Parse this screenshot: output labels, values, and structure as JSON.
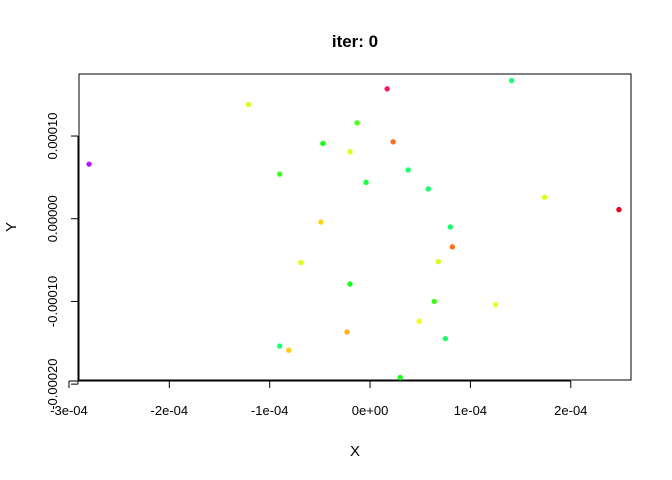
{
  "chart_data": {
    "type": "scatter",
    "title": "iter: 0",
    "xlabel": "X",
    "ylabel": "Y",
    "xlim": [
      -0.00029,
      0.00026
    ],
    "ylim": [
      -0.000195,
      0.000175
    ],
    "x_ticks": [
      {
        "value": -0.0003,
        "label": "-3e-04"
      },
      {
        "value": -0.0002,
        "label": "-2e-04"
      },
      {
        "value": -0.0001,
        "label": "-1e-04"
      },
      {
        "value": 0,
        "label": "0e+00"
      },
      {
        "value": 0.0001,
        "label": "1e-04"
      },
      {
        "value": 0.0002,
        "label": "2e-04"
      }
    ],
    "y_ticks": [
      {
        "value": -0.0002,
        "label": "-0.00020"
      },
      {
        "value": -0.0001,
        "label": "-0.00010"
      },
      {
        "value": 0,
        "label": "0.00000"
      },
      {
        "value": 0.0001,
        "label": "0.00010"
      }
    ],
    "grid": false,
    "points": [
      {
        "x": -0.00028,
        "y": 6.6e-05,
        "color": "#b31aff"
      },
      {
        "x": -0.000121,
        "y": 0.000138,
        "color": "#d9ff1a"
      },
      {
        "x": 1.7e-05,
        "y": 0.000157,
        "color": "#ff1a5e"
      },
      {
        "x": 0.000141,
        "y": 0.000167,
        "color": "#1aff7a"
      },
      {
        "x": -1.3e-05,
        "y": 0.000116,
        "color": "#4dff1a"
      },
      {
        "x": 2.3e-05,
        "y": 9.3e-05,
        "color": "#ff6e1a"
      },
      {
        "x": -4.7e-05,
        "y": 9.1e-05,
        "color": "#1aff1a"
      },
      {
        "x": -2e-05,
        "y": 8.1e-05,
        "color": "#e6ff1a"
      },
      {
        "x": 3.8e-05,
        "y": 5.9e-05,
        "color": "#1aff6e"
      },
      {
        "x": -9e-05,
        "y": 5.4e-05,
        "color": "#3bff1a"
      },
      {
        "x": -4e-06,
        "y": 4.4e-05,
        "color": "#1aff3b"
      },
      {
        "x": 5.8e-05,
        "y": 3.6e-05,
        "color": "#1aff6e"
      },
      {
        "x": 0.000174,
        "y": 2.6e-05,
        "color": "#d9ff1a"
      },
      {
        "x": 0.000248,
        "y": 1.1e-05,
        "color": "#e6001a"
      },
      {
        "x": -4.9e-05,
        "y": -4e-06,
        "color": "#ffd21a"
      },
      {
        "x": 8e-05,
        "y": -1e-05,
        "color": "#1aff6e"
      },
      {
        "x": 8.2e-05,
        "y": -3.4e-05,
        "color": "#ff6e1a"
      },
      {
        "x": -6.9e-05,
        "y": -5.3e-05,
        "color": "#d9ff1a"
      },
      {
        "x": 6.8e-05,
        "y": -5.2e-05,
        "color": "#d9ff1a"
      },
      {
        "x": -2e-05,
        "y": -7.9e-05,
        "color": "#1aff1a"
      },
      {
        "x": 6.4e-05,
        "y": -0.0001,
        "color": "#3bff1a"
      },
      {
        "x": 0.000125,
        "y": -0.000104,
        "color": "#ecff1a"
      },
      {
        "x": 4.9e-05,
        "y": -0.000124,
        "color": "#ecff1a"
      },
      {
        "x": -2.3e-05,
        "y": -0.000137,
        "color": "#ffb41a"
      },
      {
        "x": 7.5e-05,
        "y": -0.000145,
        "color": "#1aff6e"
      },
      {
        "x": -9e-05,
        "y": -0.000154,
        "color": "#1aff7a"
      },
      {
        "x": -8.1e-05,
        "y": -0.000159,
        "color": "#ffcc1a"
      },
      {
        "x": 3e-05,
        "y": -0.000192,
        "color": "#1aff1a"
      }
    ]
  }
}
